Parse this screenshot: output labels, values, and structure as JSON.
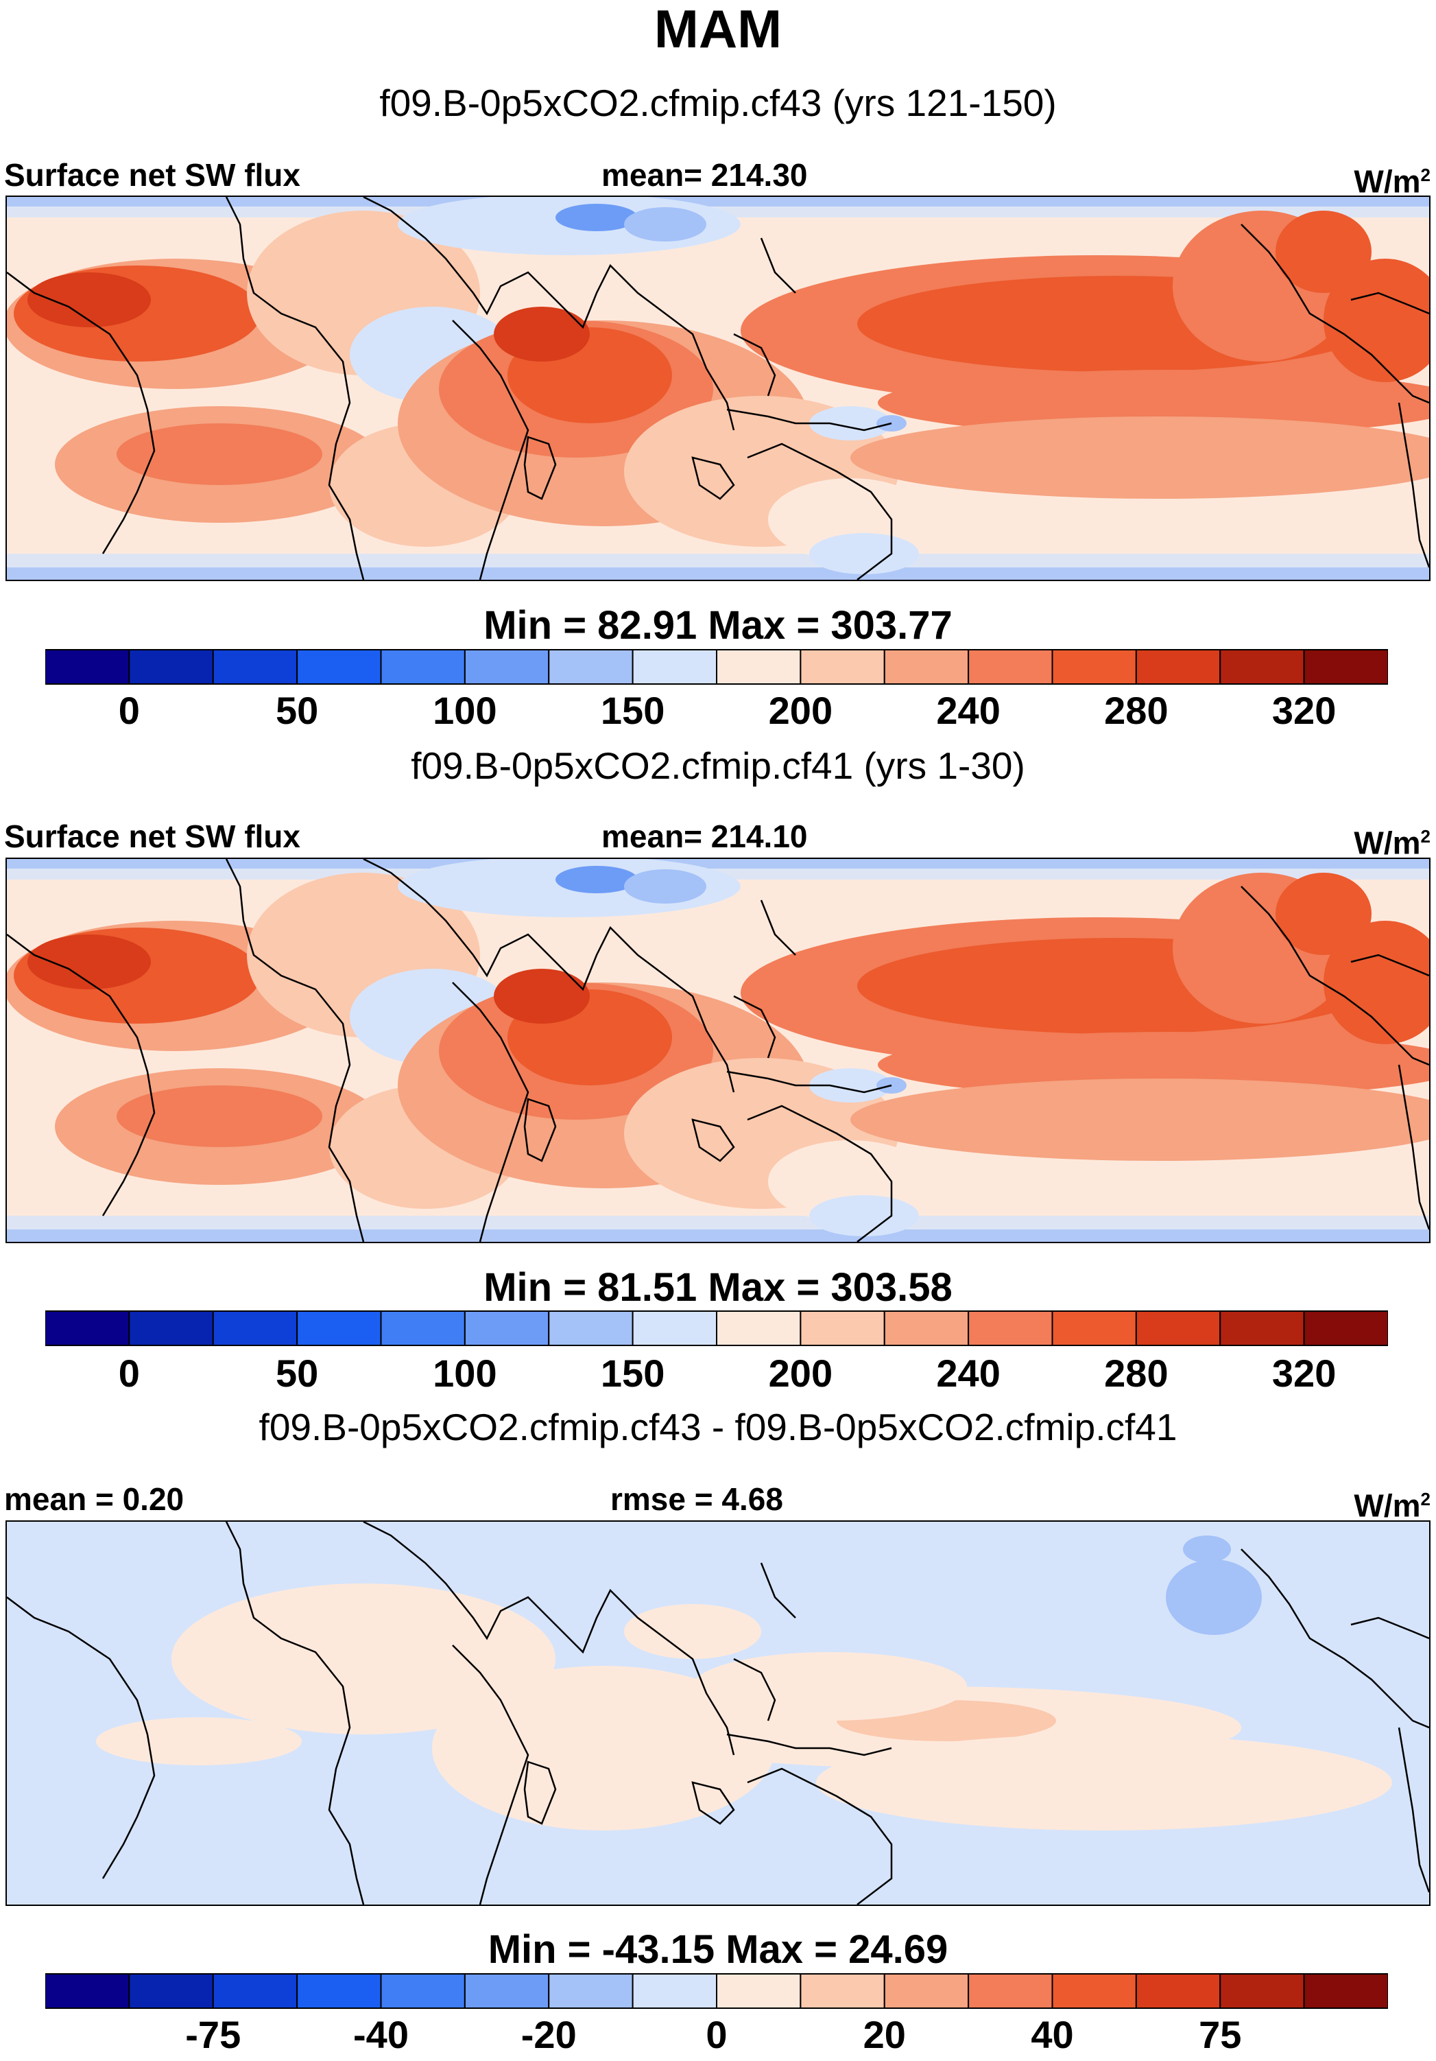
{
  "figure": {
    "season": "MAM",
    "units_base": "W/m",
    "units_exp": "2"
  },
  "palette": [
    "#08008a",
    "#0624b0",
    "#0e3fd6",
    "#1a5ff2",
    "#3f7ef5",
    "#6d9cf6",
    "#a4c1f8",
    "#d5e4fb",
    "#fde9dc",
    "#fbc9ae",
    "#f6a482",
    "#f27d58",
    "#ec5a2e",
    "#d83c1a",
    "#b1230f",
    "#850c08"
  ],
  "chart_data": [
    {
      "type": "heatmap",
      "panel_id": "cf43",
      "title": "f09.B-0p5xCO2.cfmip.cf43 (yrs 121-150)",
      "field_label": "Surface net SW flux",
      "mean_text": "mean= 214.30",
      "minmax_text": "Min =  82.91 Max = 303.77",
      "min": 82.91,
      "max": 303.77,
      "mean": 214.3,
      "colorbar_ticks": [
        "0",
        "50",
        "100",
        "150",
        "200",
        "240",
        "280",
        "320"
      ],
      "colorbar_tick_boundaries": [
        1,
        3,
        5,
        7,
        9,
        11,
        13,
        15
      ]
    },
    {
      "type": "heatmap",
      "panel_id": "cf41",
      "title": "f09.B-0p5xCO2.cfmip.cf41 (yrs 1-30)",
      "field_label": "Surface net SW flux",
      "mean_text": "mean= 214.10",
      "minmax_text": "Min =  81.51 Max = 303.58",
      "min": 81.51,
      "max": 303.58,
      "mean": 214.1,
      "colorbar_ticks": [
        "0",
        "50",
        "100",
        "150",
        "200",
        "240",
        "280",
        "320"
      ],
      "colorbar_tick_boundaries": [
        1,
        3,
        5,
        7,
        9,
        11,
        13,
        15
      ]
    },
    {
      "type": "heatmap",
      "panel_id": "diff",
      "title": "f09.B-0p5xCO2.cfmip.cf43 - f09.B-0p5xCO2.cfmip.cf41",
      "mean_text": "mean =   0.20",
      "rmse_text": "rmse =   4.68",
      "minmax_text": "Min = -43.15 Max =  24.69",
      "min": -43.15,
      "max": 24.69,
      "mean": 0.2,
      "rmse": 4.68,
      "colorbar_ticks": [
        "-75",
        "-40",
        "-20",
        "0",
        "20",
        "40",
        "75"
      ],
      "colorbar_tick_boundaries": [
        2,
        4,
        6,
        8,
        10,
        12,
        14
      ]
    }
  ]
}
